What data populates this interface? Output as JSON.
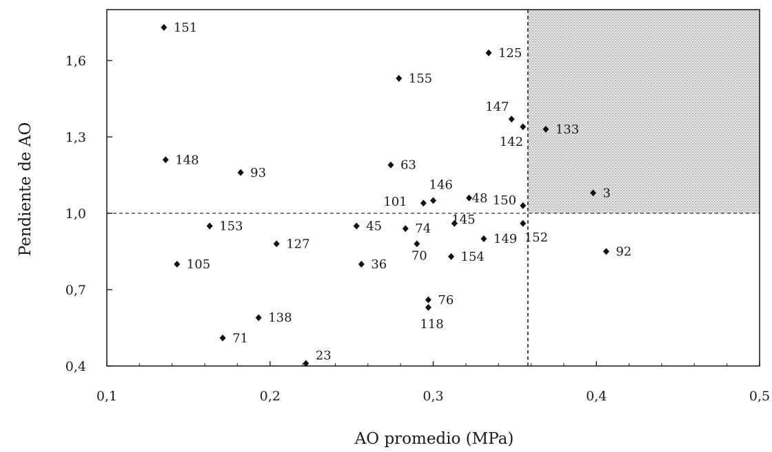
{
  "chart_data": {
    "type": "scatter",
    "xlabel": "AO promedio (MPa)",
    "ylabel": "Pendiente de AO",
    "xlim": [
      0.1,
      0.5
    ],
    "ylim": [
      0.4,
      1.8
    ],
    "x_ticks": [
      "0,1",
      "0,2",
      "0,3",
      "0,4",
      "0,5"
    ],
    "y_ticks": [
      "0,4",
      "0,7",
      "1,0",
      "1,3",
      "1,6"
    ],
    "thresholds": {
      "x": 0.358,
      "y": 1.0
    },
    "highlight_region": "upper-right",
    "grid": false,
    "marker_color": "#111111",
    "shade_color": "#cfcfcf",
    "points": [
      {
        "label": "151",
        "x": 0.135,
        "y": 1.73
      },
      {
        "label": "125",
        "x": 0.334,
        "y": 1.63
      },
      {
        "label": "155",
        "x": 0.279,
        "y": 1.53
      },
      {
        "label": "147",
        "x": 0.348,
        "y": 1.37
      },
      {
        "label": "142",
        "x": 0.355,
        "y": 1.34
      },
      {
        "label": "133",
        "x": 0.369,
        "y": 1.33
      },
      {
        "label": "148",
        "x": 0.136,
        "y": 1.21
      },
      {
        "label": "63",
        "x": 0.274,
        "y": 1.19
      },
      {
        "label": "93",
        "x": 0.182,
        "y": 1.16
      },
      {
        "label": "3",
        "x": 0.398,
        "y": 1.08
      },
      {
        "label": "48",
        "x": 0.322,
        "y": 1.06
      },
      {
        "label": "146",
        "x": 0.3,
        "y": 1.05
      },
      {
        "label": "101",
        "x": 0.294,
        "y": 1.04
      },
      {
        "label": "150",
        "x": 0.355,
        "y": 1.03
      },
      {
        "label": "145",
        "x": 0.313,
        "y": 0.96
      },
      {
        "label": "152",
        "x": 0.355,
        "y": 0.96
      },
      {
        "label": "153",
        "x": 0.163,
        "y": 0.95
      },
      {
        "label": "45",
        "x": 0.253,
        "y": 0.95
      },
      {
        "label": "74",
        "x": 0.283,
        "y": 0.94
      },
      {
        "label": "149",
        "x": 0.331,
        "y": 0.9
      },
      {
        "label": "127",
        "x": 0.204,
        "y": 0.88
      },
      {
        "label": "70",
        "x": 0.29,
        "y": 0.88
      },
      {
        "label": "92",
        "x": 0.406,
        "y": 0.85
      },
      {
        "label": "154",
        "x": 0.311,
        "y": 0.83
      },
      {
        "label": "105",
        "x": 0.143,
        "y": 0.8
      },
      {
        "label": "36",
        "x": 0.256,
        "y": 0.8
      },
      {
        "label": "76",
        "x": 0.297,
        "y": 0.66
      },
      {
        "label": "118",
        "x": 0.297,
        "y": 0.63
      },
      {
        "label": "138",
        "x": 0.193,
        "y": 0.59
      },
      {
        "label": "71",
        "x": 0.171,
        "y": 0.51
      },
      {
        "label": "23",
        "x": 0.222,
        "y": 0.41
      }
    ]
  }
}
